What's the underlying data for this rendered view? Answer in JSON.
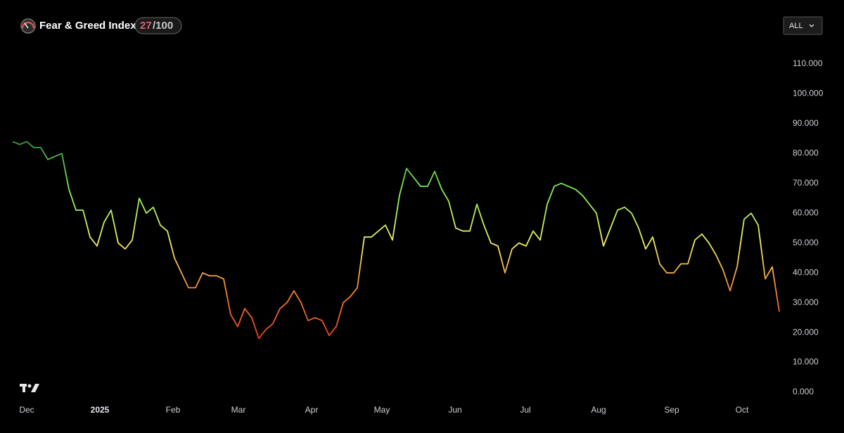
{
  "header": {
    "title": "Fear & Greed Index",
    "value": "27",
    "max": "/100",
    "range_button": "ALL"
  },
  "chart_data": {
    "type": "line",
    "series": [
      {
        "values": [
          84,
          83,
          84,
          82,
          82,
          78,
          79,
          80,
          68,
          61,
          61,
          52,
          49,
          57,
          61,
          50,
          48,
          51,
          65,
          60,
          62,
          56,
          54,
          45,
          40,
          35,
          35,
          40,
          39,
          39,
          38,
          26,
          22,
          28,
          25,
          18,
          21,
          23,
          28,
          30,
          34,
          30,
          24,
          25,
          24,
          19,
          22,
          30,
          32,
          35,
          52,
          52,
          54,
          56,
          51,
          66,
          75,
          72,
          69,
          69,
          74,
          68,
          64,
          55,
          54,
          54,
          63,
          56,
          50,
          49,
          40,
          48,
          50,
          49,
          54,
          51,
          63,
          69,
          70,
          69,
          68,
          66,
          63,
          60,
          49,
          55,
          61,
          62,
          60,
          55,
          48,
          52,
          43,
          40,
          40,
          43,
          43,
          51,
          53,
          50,
          46,
          41,
          34,
          42,
          58,
          60,
          56,
          38,
          42,
          27
        ]
      }
    ],
    "color_scale": [
      [
        15,
        "#e8321e"
      ],
      [
        35,
        "#f08a3a"
      ],
      [
        50,
        "#f3ef5c"
      ],
      [
        68,
        "#7ef05a"
      ],
      [
        84,
        "#3e9a3a"
      ]
    ],
    "xlim": [
      0,
      109
    ],
    "xticks": [
      {
        "value": 2,
        "label": "Dec"
      },
      {
        "value": 12.4,
        "label": "2025"
      },
      {
        "value": 22.8,
        "label": "Feb"
      },
      {
        "value": 32.1,
        "label": "Mar"
      },
      {
        "value": 42.5,
        "label": "Apr"
      },
      {
        "value": 52.5,
        "label": "May"
      },
      {
        "value": 62.9,
        "label": "Jun"
      },
      {
        "value": 72.9,
        "label": "Jul"
      },
      {
        "value": 83.3,
        "label": "Aug"
      },
      {
        "value": 93.7,
        "label": "Sep"
      },
      {
        "value": 103.7,
        "label": "Oct"
      }
    ],
    "ylim": [
      0,
      110
    ],
    "yticks": [
      {
        "value": 0,
        "label": "0.000"
      },
      {
        "value": 10,
        "label": "10.000"
      },
      {
        "value": 20,
        "label": "20.000"
      },
      {
        "value": 30,
        "label": "30.000"
      },
      {
        "value": 40,
        "label": "40.000"
      },
      {
        "value": 50,
        "label": "50.000"
      },
      {
        "value": 60,
        "label": "60.000"
      },
      {
        "value": 70,
        "label": "70.000"
      },
      {
        "value": 80,
        "label": "80.000"
      },
      {
        "value": 90,
        "label": "90.000"
      },
      {
        "value": 100,
        "label": "100.000"
      },
      {
        "value": 110,
        "label": "110.000"
      }
    ]
  }
}
